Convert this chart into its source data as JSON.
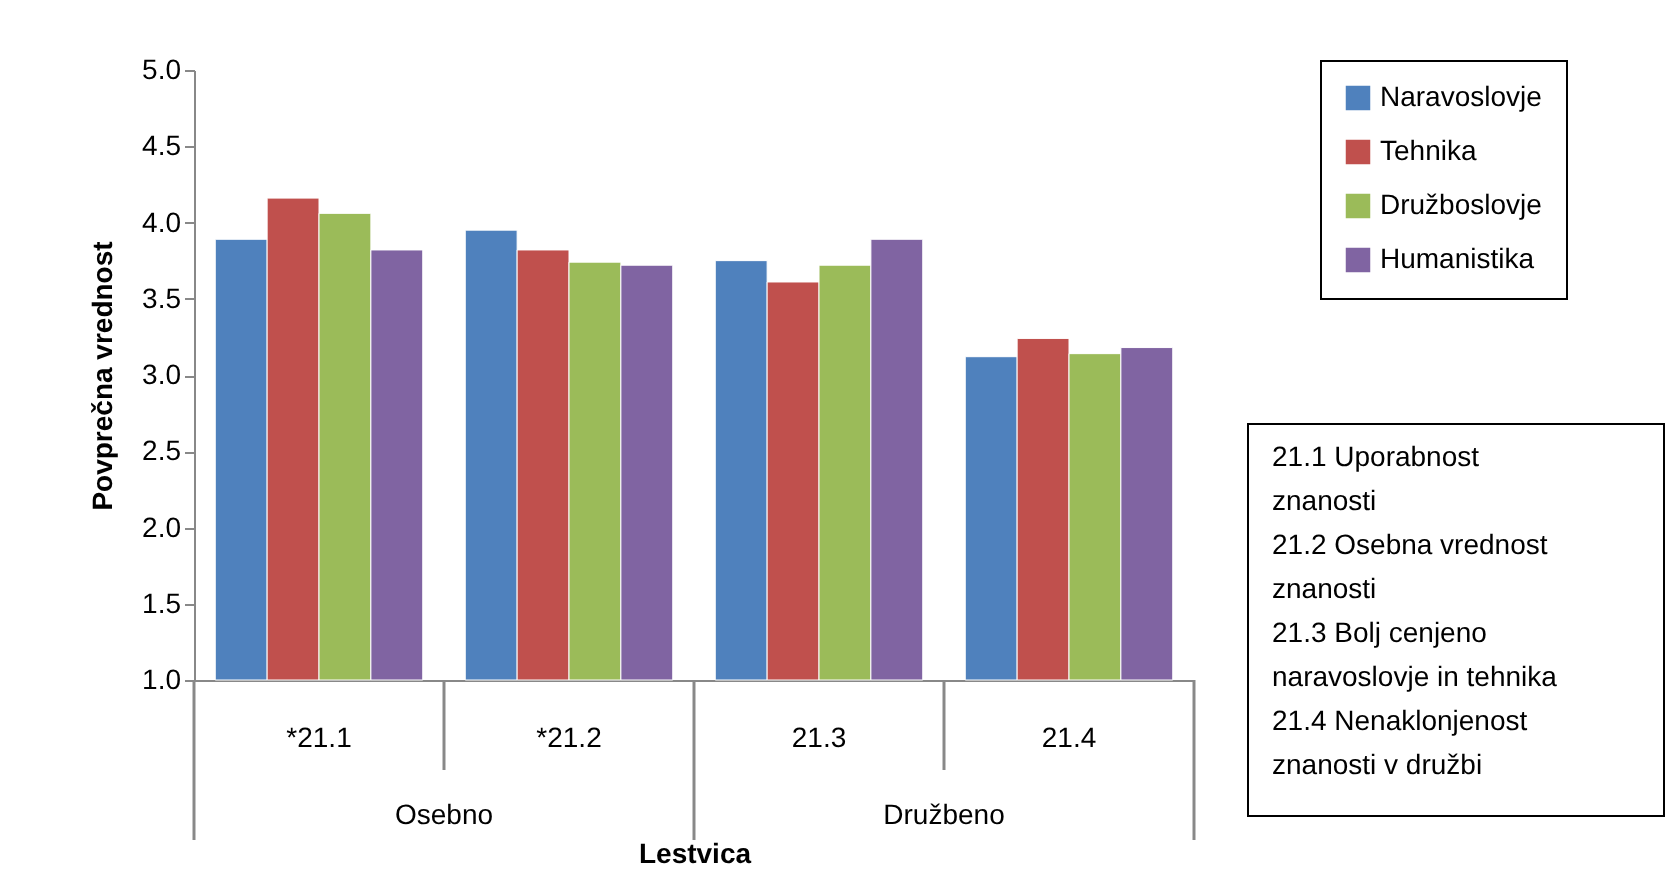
{
  "chart_data": {
    "type": "bar",
    "categories": [
      "*21.1",
      "*21.2",
      "21.3",
      "21.4"
    ],
    "series": [
      {
        "name": "Naravoslovje",
        "color": "#4f81bd",
        "values": [
          3.89,
          3.95,
          3.75,
          3.12
        ]
      },
      {
        "name": "Tehnika",
        "color": "#c0504d",
        "values": [
          4.16,
          3.82,
          3.61,
          3.24
        ]
      },
      {
        "name": "Družboslovje",
        "color": "#9bbb59",
        "values": [
          4.06,
          3.74,
          3.72,
          3.14
        ]
      },
      {
        "name": "Humanistika",
        "color": "#8064a2",
        "values": [
          3.82,
          3.72,
          3.89,
          3.18
        ]
      }
    ],
    "xlabel": "Lestvica",
    "ylabel": "Povprečna vrednost",
    "ylim": [
      1.0,
      5.0
    ],
    "yticks": [
      {
        "value": 1,
        "label": "1.0"
      },
      {
        "value": 1.5,
        "label": "1.5"
      },
      {
        "value": 2,
        "label": "2.0"
      },
      {
        "value": 2.5,
        "label": "2.5"
      },
      {
        "value": 3,
        "label": "3.0"
      },
      {
        "value": 3.5,
        "label": "3.5"
      },
      {
        "value": 4,
        "label": "4.0"
      },
      {
        "value": 4.5,
        "label": "4.5"
      },
      {
        "value": 5,
        "label": "5.0"
      }
    ],
    "annotations": [
      "Osebno",
      "Družbeno",
      "21.1 Uporabnost znanosti",
      "21.2 Osebna vrednost znanosti",
      "21.3 Bolj cenjeno naravoslovje in tehnika",
      "21.4 Nenaklonjenost znanosti v družbi"
    ],
    "legend": "top right",
    "grid": false
  }
}
